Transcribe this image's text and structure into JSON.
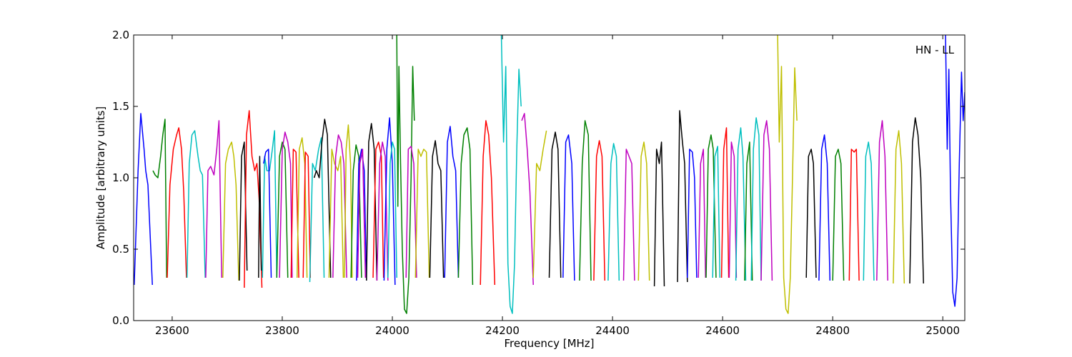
{
  "chart_data": {
    "type": "line",
    "title": "",
    "xlabel": "Frequency [MHz]",
    "ylabel": "Amplitude [arbitrary units]",
    "xlim": [
      23530,
      25040
    ],
    "ylim": [
      0.0,
      2.0
    ],
    "xticks": [
      23600,
      23800,
      24000,
      24200,
      24400,
      24600,
      24800,
      25000
    ],
    "xtick_labels": [
      "23600",
      "23800",
      "24000",
      "24200",
      "24400",
      "24600",
      "24800",
      "25000"
    ],
    "yticks": [
      0.0,
      0.5,
      1.0,
      1.5,
      2.0
    ],
    "ytick_labels": [
      "0.0",
      "0.5",
      "1.0",
      "1.5",
      "2.0"
    ],
    "grid": false,
    "annotation": "HN - LL",
    "palette": [
      "#0000ff",
      "#008000",
      "#ff0000",
      "#00bfbf",
      "#bf00bf",
      "#bfbf00",
      "#000000"
    ],
    "series": [
      {
        "color": "#0000ff",
        "x": [
          23531,
          23538,
          23543,
          23549,
          23552,
          23556,
          23560,
          23564
        ],
        "y": [
          0.25,
          1.05,
          1.45,
          1.2,
          1.05,
          0.95,
          0.6,
          0.25
        ]
      },
      {
        "color": "#008000",
        "x": [
          23565,
          23569,
          23574,
          23579,
          23583,
          23587,
          23590
        ],
        "y": [
          1.05,
          1.02,
          1.0,
          1.15,
          1.3,
          1.41,
          0.3
        ]
      },
      {
        "color": "#ff0000",
        "x": [
          23591,
          23596,
          23602,
          23608,
          23612,
          23617,
          23621,
          23626
        ],
        "y": [
          0.3,
          0.95,
          1.2,
          1.3,
          1.35,
          1.2,
          0.9,
          0.3
        ]
      },
      {
        "color": "#00bfbf",
        "x": [
          23627,
          23631,
          23636,
          23641,
          23647,
          23651,
          23655,
          23660
        ],
        "y": [
          0.3,
          1.1,
          1.3,
          1.33,
          1.15,
          1.05,
          1.02,
          0.3
        ]
      },
      {
        "color": "#bf00bf",
        "x": [
          23661,
          23665,
          23670,
          23676,
          23681,
          23685,
          23690
        ],
        "y": [
          0.3,
          1.05,
          1.08,
          1.02,
          1.2,
          1.4,
          0.3
        ]
      },
      {
        "color": "#bfbf00",
        "x": [
          23692,
          23697,
          23702,
          23708,
          23712,
          23716,
          23721
        ],
        "y": [
          0.3,
          1.1,
          1.2,
          1.25,
          1.15,
          0.95,
          0.28
        ]
      },
      {
        "color": "#000000",
        "x": [
          23722,
          23726,
          23731,
          23736
        ],
        "y": [
          0.28,
          1.15,
          1.25,
          0.35
        ]
      },
      {
        "color": "#ff0000",
        "x": [
          23731,
          23735,
          23740,
          23745,
          23750,
          23754,
          23758,
          23763
        ],
        "y": [
          0.23,
          1.3,
          1.47,
          1.15,
          1.05,
          1.1,
          0.85,
          0.23
        ]
      },
      {
        "color": "#000000",
        "x": [
          23757,
          23759,
          23762
        ],
        "y": [
          0.3,
          1.15,
          0.35
        ]
      },
      {
        "color": "#00bfbf",
        "x": [
          23764,
          23768,
          23772,
          23777,
          23782,
          23786,
          23790
        ],
        "y": [
          0.3,
          1.15,
          1.05,
          1.05,
          1.2,
          1.33,
          0.3
        ]
      },
      {
        "color": "#0000ff",
        "x": [
          23766,
          23770,
          23775,
          23780
        ],
        "y": [
          1.1,
          1.18,
          1.2,
          0.3
        ]
      },
      {
        "color": "#008000",
        "x": [
          23790,
          23795,
          23800,
          23805,
          23810
        ],
        "y": [
          0.3,
          1.15,
          1.25,
          1.2,
          0.3
        ]
      },
      {
        "color": "#bf00bf",
        "x": [
          23795,
          23800,
          23805,
          23810,
          23815,
          23818
        ],
        "y": [
          0.3,
          1.2,
          1.32,
          1.25,
          1.1,
          0.3
        ]
      },
      {
        "color": "#ff0000",
        "x": [
          23816,
          23820,
          23825,
          23830
        ],
        "y": [
          0.3,
          1.2,
          1.18,
          0.3
        ]
      },
      {
        "color": "#bfbf00",
        "x": [
          23827,
          23831,
          23836,
          23841,
          23845
        ],
        "y": [
          0.3,
          1.2,
          1.28,
          1.1,
          0.3
        ]
      },
      {
        "color": "#ff0000",
        "x": [
          23838,
          23842,
          23847,
          23851
        ],
        "y": [
          0.3,
          1.18,
          1.15,
          0.3
        ]
      },
      {
        "color": "#00bfbf",
        "x": [
          23850,
          23855,
          23860,
          23866,
          23871,
          23876
        ],
        "y": [
          0.27,
          1.1,
          1.05,
          1.2,
          1.28,
          0.3
        ]
      },
      {
        "color": "#000000",
        "x": [
          23858,
          23862,
          23867,
          23872,
          23877,
          23882,
          23888
        ],
        "y": [
          1.0,
          1.05,
          1.0,
          1.25,
          1.41,
          1.3,
          0.3
        ]
      },
      {
        "color": "#bfbf00",
        "x": [
          23885,
          23890,
          23895,
          23901,
          23906,
          23911
        ],
        "y": [
          0.3,
          1.2,
          1.1,
          1.05,
          1.15,
          0.3
        ]
      },
      {
        "color": "#bf00bf",
        "x": [
          23892,
          23897,
          23902,
          23907,
          23912,
          23917
        ],
        "y": [
          0.3,
          1.15,
          1.3,
          1.25,
          1.1,
          0.3
        ]
      },
      {
        "color": "#bfbf00",
        "x": [
          23913,
          23916,
          23920,
          23924,
          23927
        ],
        "y": [
          0.3,
          1.2,
          1.37,
          1.1,
          0.3
        ]
      },
      {
        "color": "#008000",
        "x": [
          23925,
          23929,
          23934,
          23939,
          23944
        ],
        "y": [
          0.3,
          1.05,
          1.23,
          1.15,
          0.3
        ]
      },
      {
        "color": "#0000ff",
        "x": [
          23935,
          23939,
          23944,
          23949,
          23953
        ],
        "y": [
          0.28,
          1.1,
          1.2,
          1.05,
          0.28
        ]
      },
      {
        "color": "#bf00bf",
        "x": [
          23937,
          23941,
          23946,
          23951
        ],
        "y": [
          0.3,
          1.1,
          1.2,
          0.3
        ]
      },
      {
        "color": "#000000",
        "x": [
          23953,
          23957,
          23962,
          23967,
          23972
        ],
        "y": [
          0.28,
          1.25,
          1.38,
          1.2,
          0.28
        ]
      },
      {
        "color": "#ff0000",
        "x": [
          23965,
          23970,
          23975,
          23980,
          23984
        ],
        "y": [
          0.3,
          1.2,
          1.25,
          1.15,
          0.3
        ]
      },
      {
        "color": "#bf00bf",
        "x": [
          23972,
          23977,
          23982,
          23987,
          23992
        ],
        "y": [
          0.28,
          1.1,
          1.25,
          1.15,
          0.28
        ]
      },
      {
        "color": "#0000ff",
        "x": [
          23985,
          23990,
          23995,
          24000,
          24005
        ],
        "y": [
          0.28,
          1.2,
          1.42,
          1.1,
          0.25
        ]
      },
      {
        "color": "#00bfbf",
        "x": [
          23992,
          23996,
          24000,
          24004,
          24008
        ],
        "y": [
          0.3,
          1.1,
          1.25,
          1.2,
          0.3
        ]
      },
      {
        "color": "#008000",
        "x": [
          24008,
          24010,
          24012,
          24015,
          24018,
          24022,
          24026,
          24030,
          24034,
          24037,
          24040
        ],
        "y": [
          2.0,
          0.8,
          1.78,
          1.1,
          0.5,
          0.08,
          0.05,
          0.3,
          1.0,
          1.78,
          1.4
        ]
      },
      {
        "color": "#bf00bf",
        "x": [
          24025,
          24029,
          24034,
          24039,
          24044
        ],
        "y": [
          0.3,
          1.2,
          1.22,
          1.1,
          0.3
        ]
      },
      {
        "color": "#bfbf00",
        "x": [
          24042,
          24047,
          24052,
          24057,
          24062,
          24067
        ],
        "y": [
          0.3,
          1.2,
          1.15,
          1.2,
          1.18,
          0.3
        ]
      },
      {
        "color": "#000000",
        "x": [
          24068,
          24073,
          24078,
          24083,
          24088,
          24093
        ],
        "y": [
          0.3,
          1.15,
          1.26,
          1.1,
          1.05,
          0.3
        ]
      },
      {
        "color": "#0000ff",
        "x": [
          24095,
          24100,
          24105,
          24110,
          24115,
          24120
        ],
        "y": [
          0.3,
          1.25,
          1.36,
          1.15,
          1.05,
          0.3
        ]
      },
      {
        "color": "#008000",
        "x": [
          24120,
          24125,
          24130,
          24136,
          24141,
          24146
        ],
        "y": [
          0.3,
          1.1,
          1.3,
          1.35,
          1.2,
          0.25
        ]
      },
      {
        "color": "#ff0000",
        "x": [
          24160,
          24165,
          24170,
          24175,
          24180,
          24186
        ],
        "y": [
          0.25,
          1.15,
          1.4,
          1.3,
          1.0,
          0.25
        ]
      },
      {
        "color": "#00bfbf",
        "x": [
          24198,
          24202,
          24206,
          24210,
          24214,
          24218,
          24222,
          24226,
          24230,
          24234
        ],
        "y": [
          2.0,
          1.25,
          1.78,
          0.4,
          0.1,
          0.05,
          0.4,
          1.2,
          1.76,
          1.5
        ]
      },
      {
        "color": "#bf00bf",
        "x": [
          24235,
          24240,
          24245,
          24250,
          24256
        ],
        "y": [
          1.4,
          1.45,
          1.2,
          0.9,
          0.25
        ]
      },
      {
        "color": "#bfbf00",
        "x": [
          24256,
          24262,
          24268,
          24274,
          24280
        ],
        "y": [
          0.3,
          1.1,
          1.05,
          1.2,
          1.33
        ]
      },
      {
        "color": "#000000",
        "x": [
          24285,
          24290,
          24296,
          24301,
          24306
        ],
        "y": [
          0.3,
          1.2,
          1.32,
          1.2,
          0.3
        ]
      },
      {
        "color": "#0000ff",
        "x": [
          24310,
          24315,
          24320,
          24326,
          24331
        ],
        "y": [
          0.3,
          1.25,
          1.3,
          1.1,
          0.28
        ]
      },
      {
        "color": "#008000",
        "x": [
          24340,
          24345,
          24350,
          24356,
          24361
        ],
        "y": [
          0.28,
          1.1,
          1.4,
          1.3,
          0.28
        ]
      },
      {
        "color": "#ff0000",
        "x": [
          24366,
          24371,
          24376,
          24381,
          24386
        ],
        "y": [
          0.28,
          1.15,
          1.26,
          1.15,
          0.28
        ]
      },
      {
        "color": "#00bfbf",
        "x": [
          24392,
          24397,
          24402,
          24407,
          24412
        ],
        "y": [
          0.28,
          1.1,
          1.24,
          1.15,
          0.28
        ]
      },
      {
        "color": "#bf00bf",
        "x": [
          24420,
          24425,
          24430,
          24435,
          24440
        ],
        "y": [
          0.28,
          1.2,
          1.15,
          1.1,
          0.28
        ]
      },
      {
        "color": "#bfbf00",
        "x": [
          24447,
          24452,
          24457,
          24462,
          24467
        ],
        "y": [
          0.28,
          1.15,
          1.25,
          1.1,
          0.28
        ]
      },
      {
        "color": "#000000",
        "x": [
          24476,
          24480,
          24485,
          24489,
          24494
        ],
        "y": [
          0.24,
          1.2,
          1.1,
          1.25,
          0.24
        ]
      },
      {
        "color": "#000000",
        "x": [
          24518,
          24522,
          24527,
          24531,
          24536
        ],
        "y": [
          0.27,
          1.47,
          1.25,
          1.1,
          0.27
        ]
      },
      {
        "color": "#0000ff",
        "x": [
          24536,
          24540,
          24545,
          24549,
          24553
        ],
        "y": [
          0.3,
          1.2,
          1.18,
          1.0,
          0.3
        ]
      },
      {
        "color": "#bf00bf",
        "x": [
          24556,
          24560,
          24565,
          24569
        ],
        "y": [
          0.3,
          1.1,
          1.2,
          0.3
        ]
      },
      {
        "color": "#008000",
        "x": [
          24570,
          24574,
          24579,
          24583,
          24588
        ],
        "y": [
          0.3,
          1.2,
          1.3,
          1.2,
          0.3
        ]
      },
      {
        "color": "#00bfbf",
        "x": [
          24582,
          24586,
          24591,
          24595
        ],
        "y": [
          0.3,
          1.15,
          1.22,
          0.3
        ]
      },
      {
        "color": "#ff0000",
        "x": [
          24598,
          24602,
          24607,
          24611
        ],
        "y": [
          0.3,
          1.2,
          1.35,
          0.3
        ]
      },
      {
        "color": "#bf00bf",
        "x": [
          24612,
          24616,
          24621,
          24625
        ],
        "y": [
          0.3,
          1.25,
          1.15,
          0.3
        ]
      },
      {
        "color": "#00bfbf",
        "x": [
          24624,
          24628,
          24633,
          24637,
          24642
        ],
        "y": [
          0.28,
          1.2,
          1.35,
          1.15,
          0.28
        ]
      },
      {
        "color": "#008000",
        "x": [
          24640,
          24644,
          24649,
          24654
        ],
        "y": [
          0.28,
          1.1,
          1.25,
          0.28
        ]
      },
      {
        "color": "#00bfbf",
        "x": [
          24652,
          24656,
          24661,
          24666,
          24670
        ],
        "y": [
          0.28,
          1.2,
          1.42,
          1.3,
          0.28
        ]
      },
      {
        "color": "#bf00bf",
        "x": [
          24670,
          24675,
          24680,
          24685,
          24690
        ],
        "y": [
          0.28,
          1.3,
          1.4,
          1.2,
          0.28
        ]
      },
      {
        "color": "#bfbf00",
        "x": [
          24700,
          24703,
          24707,
          24711,
          24715,
          24719,
          24723,
          24727,
          24731,
          24735
        ],
        "y": [
          2.0,
          1.25,
          1.78,
          0.3,
          0.08,
          0.05,
          0.3,
          1.0,
          1.77,
          1.4
        ]
      },
      {
        "color": "#000000",
        "x": [
          24752,
          24756,
          24761,
          24765,
          24770
        ],
        "y": [
          0.3,
          1.15,
          1.2,
          1.1,
          0.3
        ]
      },
      {
        "color": "#0000ff",
        "x": [
          24775,
          24780,
          24785,
          24790,
          24795
        ],
        "y": [
          0.28,
          1.2,
          1.3,
          1.1,
          0.28
        ]
      },
      {
        "color": "#008000",
        "x": [
          24800,
          24805,
          24810,
          24815,
          24820
        ],
        "y": [
          0.28,
          1.15,
          1.2,
          1.1,
          0.28
        ]
      },
      {
        "color": "#ff0000",
        "x": [
          24830,
          24834,
          24839,
          24843,
          24848
        ],
        "y": [
          0.28,
          1.2,
          1.18,
          1.2,
          0.28
        ]
      },
      {
        "color": "#00bfbf",
        "x": [
          24856,
          24860,
          24865,
          24870,
          24875
        ],
        "y": [
          0.28,
          1.15,
          1.25,
          1.1,
          0.28
        ]
      },
      {
        "color": "#bf00bf",
        "x": [
          24880,
          24885,
          24890,
          24895,
          24900
        ],
        "y": [
          0.28,
          1.25,
          1.4,
          1.15,
          0.28
        ]
      },
      {
        "color": "#bfbf00",
        "x": [
          24910,
          24915,
          24920,
          24925,
          24930
        ],
        "y": [
          0.26,
          1.2,
          1.33,
          1.1,
          0.26
        ]
      },
      {
        "color": "#000000",
        "x": [
          24940,
          24945,
          24950,
          24955,
          24960,
          24965
        ],
        "y": [
          0.26,
          1.25,
          1.42,
          1.3,
          1.0,
          0.26
        ]
      },
      {
        "color": "#0000ff",
        "x": [
          25005,
          25008,
          25011,
          25014,
          25018,
          25022,
          25026,
          25030,
          25034,
          25037,
          25040
        ],
        "y": [
          2.0,
          1.2,
          1.76,
          0.9,
          0.2,
          0.1,
          0.3,
          1.1,
          1.74,
          1.4,
          1.6
        ]
      }
    ]
  }
}
